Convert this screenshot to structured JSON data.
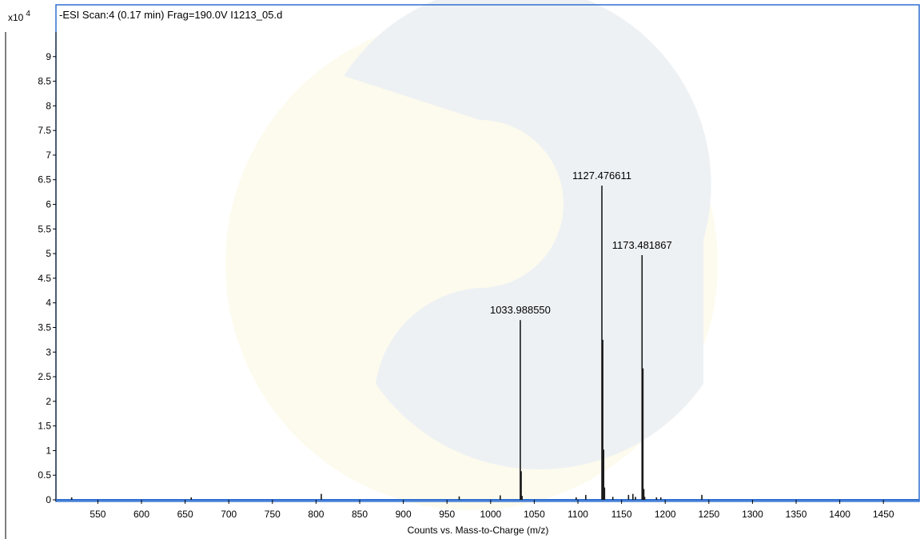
{
  "chart_data": {
    "type": "bar",
    "title": "-ESI Scan:4 (0.17 min) Frag=190.0V I1213_05.d",
    "xlabel": "Counts vs. Mass-to-Charge (m/z)",
    "ylabel": "",
    "y_multiplier": "x10",
    "y_exponent": "4",
    "xlim": [
      502,
      1491
    ],
    "ylim": [
      0,
      9.5
    ],
    "x_ticks": [
      550,
      600,
      650,
      700,
      750,
      800,
      850,
      900,
      950,
      1000,
      1050,
      1100,
      1150,
      1200,
      1250,
      1300,
      1350,
      1400,
      1450
    ],
    "y_ticks": [
      0,
      0.5,
      1,
      1.5,
      2,
      2.5,
      3,
      3.5,
      4,
      4.5,
      5,
      5.5,
      6,
      6.5,
      7,
      7.5,
      8,
      8.5,
      9
    ],
    "y_tick_labels": [
      "0",
      "0.5",
      "1",
      "1.5",
      "2",
      "2.5",
      "3",
      "3.5",
      "4",
      "4.5",
      "5",
      "5.5",
      "6",
      "6.5",
      "7",
      "7.5",
      "8",
      "8.5",
      "9"
    ],
    "peaks": [
      {
        "mz": 1033.98855,
        "intensity": 3.65,
        "label": "1033.988550"
      },
      {
        "mz": 1127.476611,
        "intensity": 6.38,
        "label": "1127.476611"
      },
      {
        "mz": 1173.481867,
        "intensity": 4.97,
        "label": "1173.481867"
      }
    ],
    "minor_peaks": [
      {
        "mz": 1035.0,
        "intensity": 0.58
      },
      {
        "mz": 1036.0,
        "intensity": 0.08
      },
      {
        "mz": 1128.5,
        "intensity": 3.25
      },
      {
        "mz": 1129.5,
        "intensity": 1.02
      },
      {
        "mz": 1130.5,
        "intensity": 0.25
      },
      {
        "mz": 1174.5,
        "intensity": 2.67
      },
      {
        "mz": 1175.5,
        "intensity": 0.22
      },
      {
        "mz": 1176.5,
        "intensity": 0.06
      },
      {
        "mz": 520,
        "intensity": 0.05
      },
      {
        "mz": 657,
        "intensity": 0.05
      },
      {
        "mz": 806,
        "intensity": 0.12
      },
      {
        "mz": 964,
        "intensity": 0.07
      },
      {
        "mz": 1011,
        "intensity": 0.09
      },
      {
        "mz": 1098,
        "intensity": 0.05
      },
      {
        "mz": 1109,
        "intensity": 0.1
      },
      {
        "mz": 1140,
        "intensity": 0.06
      },
      {
        "mz": 1158,
        "intensity": 0.1
      },
      {
        "mz": 1163,
        "intensity": 0.12
      },
      {
        "mz": 1166,
        "intensity": 0.06
      },
      {
        "mz": 1190,
        "intensity": 0.05
      },
      {
        "mz": 1195,
        "intensity": 0.05
      },
      {
        "mz": 1242,
        "intensity": 0.1
      }
    ],
    "colors": {
      "peak": "#1a1a1a",
      "axis": "#000000",
      "baseline": "#2f6fd0",
      "frame": "#2f6fd0"
    },
    "grid": false,
    "legend": "none"
  }
}
